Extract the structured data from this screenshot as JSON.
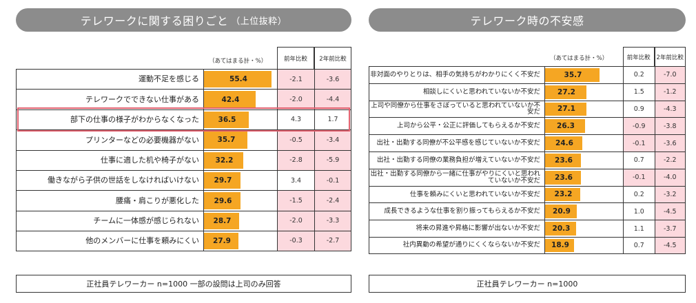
{
  "left": {
    "title_main": "テレワークに関する困りごと",
    "title_sub": "（上位抜粋）",
    "col_value": "（あてはまる計・%）",
    "col_prev": "前年比較",
    "col_2y": "2年前比較",
    "footnote": "正社員テレワーカー n=1000 一部の設問は上司のみ回答"
  },
  "right": {
    "title_main": "テレワーク時の不安感",
    "col_value": "（あてはまる計・%）",
    "col_prev": "前年比較",
    "col_2y": "2年前比較",
    "footnote": "正社員テレワーカー n=1000"
  },
  "chart_data": [
    {
      "type": "table",
      "title": "テレワークに関する困りごと（上位抜粋）",
      "unit": "（あてはまる計・%）",
      "categories": [
        "運動不足を感じる",
        "テレワークでできない仕事がある",
        "部下の仕事の様子がわからなくなった",
        "プリンターなどの必要機器がない",
        "仕事に適した机や椅子がない",
        "働きながら子供の世話をしなければいけない",
        "腰痛・肩こりが悪化した",
        "チームに一体感が感じられない",
        "他のメンバーに仕事を頼みにくい"
      ],
      "values": [
        "55.4",
        "42.4",
        "36.5",
        "35.7",
        "32.2",
        "29.7",
        "29.6",
        "28.7",
        "27.9"
      ],
      "prev_year": [
        "-2.1",
        "-2.0",
        "4.3",
        "-0.5",
        "-2.8",
        "3.4",
        "-1.5",
        "-2.0",
        "-0.3"
      ],
      "two_years": [
        "-3.6",
        "-4.4",
        "1.7",
        "-3.4",
        "-5.9",
        "-0.1",
        "-2.4",
        "-3.3",
        "-2.7"
      ],
      "highlight_index": 2,
      "bar_color": "#f5a623",
      "negative_color": "#fcd9de",
      "highlight_color": "#e0606e"
    },
    {
      "type": "table",
      "title": "テレワーク時の不安感",
      "unit": "（あてはまる計・%）",
      "categories": [
        "非対面のやりとりは、相手の気持ちがわかりにくく不安だ",
        "相談しにくいと思われていないか不安だ",
        "上司や同僚から仕事をさぼっていると思われていないか不安だ",
        "上司から公平・公正に評価してもらえるか不安だ",
        "出社・出勤する同僚が不公平感を感じていないか不安だ",
        "出社・出勤する同僚の業務負担が増えていないか不安だ",
        "出社・出勤する同僚から一緒に仕事がやりにくいと思われていないか不安だ",
        "仕事を頼みにくいと思われていないか不安だ",
        "成長できるような仕事を割り振ってもらえるか不安だ",
        "将来の昇進や昇格に影響が出ないか不安だ",
        "社内異動の希望が通りにくくならないか不安だ"
      ],
      "values": [
        "35.7",
        "27.2",
        "27.1",
        "26.3",
        "24.6",
        "23.6",
        "23.6",
        "23.2",
        "20.9",
        "20.3",
        "18.9"
      ],
      "prev_year": [
        "0.2",
        "1.5",
        "0.9",
        "-0.9",
        "-0.1",
        "0.7",
        "-0.1",
        "0.2",
        "1.0",
        "1.1",
        "0.7"
      ],
      "two_years": [
        "-7.0",
        "-1.2",
        "-4.3",
        "-3.8",
        "-3.6",
        "-2.2",
        "-4.0",
        "-3.2",
        "-4.5",
        "-3.7",
        "-4.5"
      ],
      "bar_color": "#f5a623",
      "negative_color": "#fcd9de"
    }
  ]
}
